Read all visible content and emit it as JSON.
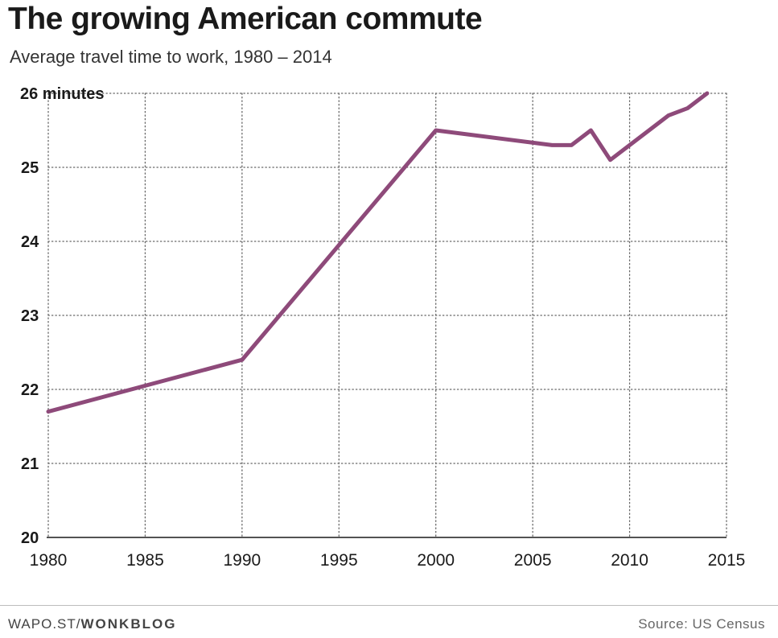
{
  "header": {
    "title": "The growing American commute",
    "subtitle": "Average travel time to work, 1980 – 2014"
  },
  "footer": {
    "credit_prefix": "WAPO.ST/",
    "credit_brand": "WONKBLOG",
    "source": "Source: US Census"
  },
  "colors": {
    "line": "#8e4a7a",
    "grid": "#666666",
    "axis": "#1a1a1a",
    "text": "#1a1a1a"
  },
  "chart_data": {
    "type": "line",
    "title": "The growing American commute",
    "subtitle": "Average travel time to work, 1980 – 2014",
    "xlabel": "",
    "ylabel": "",
    "xlim": [
      1980,
      2015
    ],
    "ylim": [
      20,
      26
    ],
    "x_ticks": [
      1980,
      1985,
      1990,
      1995,
      2000,
      2005,
      2010,
      2015
    ],
    "y_ticks": [
      20,
      21,
      22,
      23,
      24,
      25,
      26
    ],
    "y_tick_labels": [
      "20",
      "21",
      "22",
      "23",
      "24",
      "25",
      "26 minutes"
    ],
    "grid": true,
    "series": [
      {
        "x": [
          1980,
          1990,
          2000,
          2006,
          2007,
          2008,
          2009,
          2010,
          2011,
          2012,
          2013,
          2014
        ],
        "y": [
          21.7,
          22.4,
          25.5,
          25.3,
          25.3,
          25.5,
          25.1,
          25.3,
          25.5,
          25.7,
          25.8,
          26.0
        ]
      }
    ]
  }
}
